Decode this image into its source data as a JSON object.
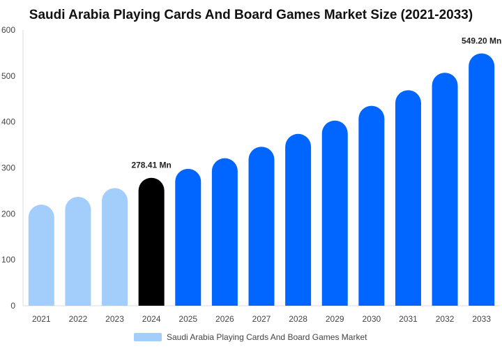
{
  "chart_data": {
    "type": "bar",
    "title": "Saudi Arabia Playing Cards And Board Games Market Size (2021-2033)",
    "xlabel": "",
    "ylabel": "",
    "ylim": [
      0,
      600
    ],
    "yticks": [
      "0",
      "100",
      "200",
      "300",
      "400",
      "500",
      "600"
    ],
    "categories": [
      "2021",
      "2022",
      "2023",
      "2024",
      "2025",
      "2026",
      "2027",
      "2028",
      "2029",
      "2030",
      "2031",
      "2032",
      "2033"
    ],
    "series": [
      {
        "name": "Saudi Arabia Playing Cards And Board Games Market",
        "values": [
          220,
          237,
          256,
          278.41,
          298,
          321,
          346,
          374,
          403,
          435,
          469,
          507,
          549.2
        ]
      }
    ],
    "data_labels": [
      {
        "category": "2024",
        "text": "278.41 Mn"
      },
      {
        "category": "2033",
        "text": "549.20 Mn"
      }
    ],
    "bar_colors": {
      "historical": "#a3cdfb",
      "base_year": "#000000",
      "forecast": "#0066ff"
    },
    "base_year": "2024",
    "grid": false,
    "legend": {
      "position": "bottom",
      "color": "#a3cdfb"
    }
  }
}
